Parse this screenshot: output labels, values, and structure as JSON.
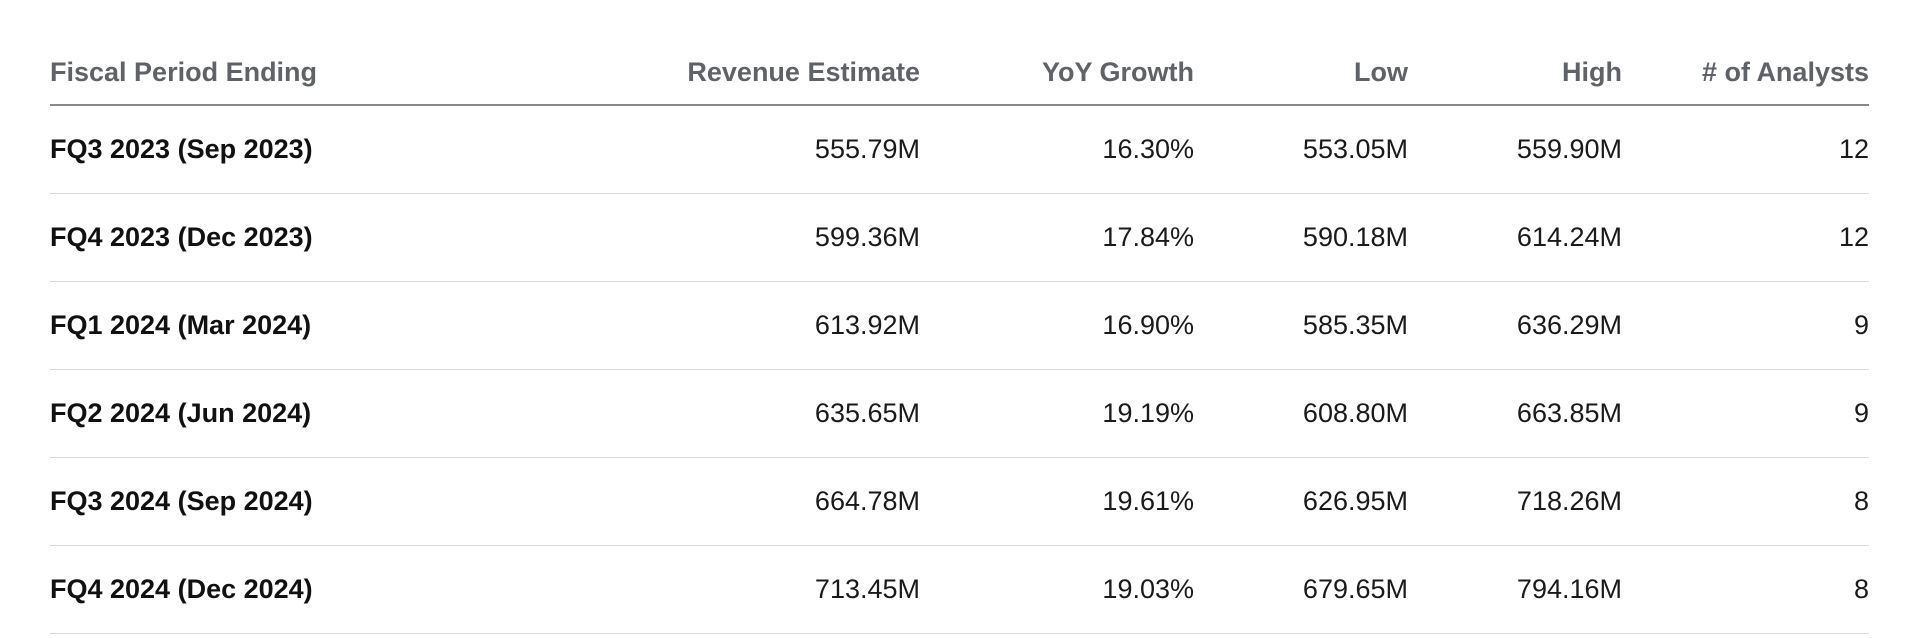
{
  "table": {
    "columns": [
      "Fiscal Period Ending",
      "Revenue Estimate",
      "YoY Growth",
      "Low",
      "High",
      "# of Analysts"
    ],
    "rows": [
      [
        "FQ3 2023 (Sep 2023)",
        "555.79M",
        "16.30%",
        "553.05M",
        "559.90M",
        "12"
      ],
      [
        "FQ4 2023 (Dec 2023)",
        "599.36M",
        "17.84%",
        "590.18M",
        "614.24M",
        "12"
      ],
      [
        "FQ1 2024 (Mar 2024)",
        "613.92M",
        "16.90%",
        "585.35M",
        "636.29M",
        "9"
      ],
      [
        "FQ2 2024 (Jun 2024)",
        "635.65M",
        "19.19%",
        "608.80M",
        "663.85M",
        "9"
      ],
      [
        "FQ3 2024 (Sep 2024)",
        "664.78M",
        "19.61%",
        "626.95M",
        "718.26M",
        "8"
      ],
      [
        "FQ4 2024 (Dec 2024)",
        "713.45M",
        "19.03%",
        "679.65M",
        "794.16M",
        "8"
      ]
    ]
  },
  "colors": {
    "header_text": "#5f6368",
    "header_rule": "#888888",
    "row_rule": "#d9d9d9",
    "cell_text": "#1a1a1a"
  }
}
